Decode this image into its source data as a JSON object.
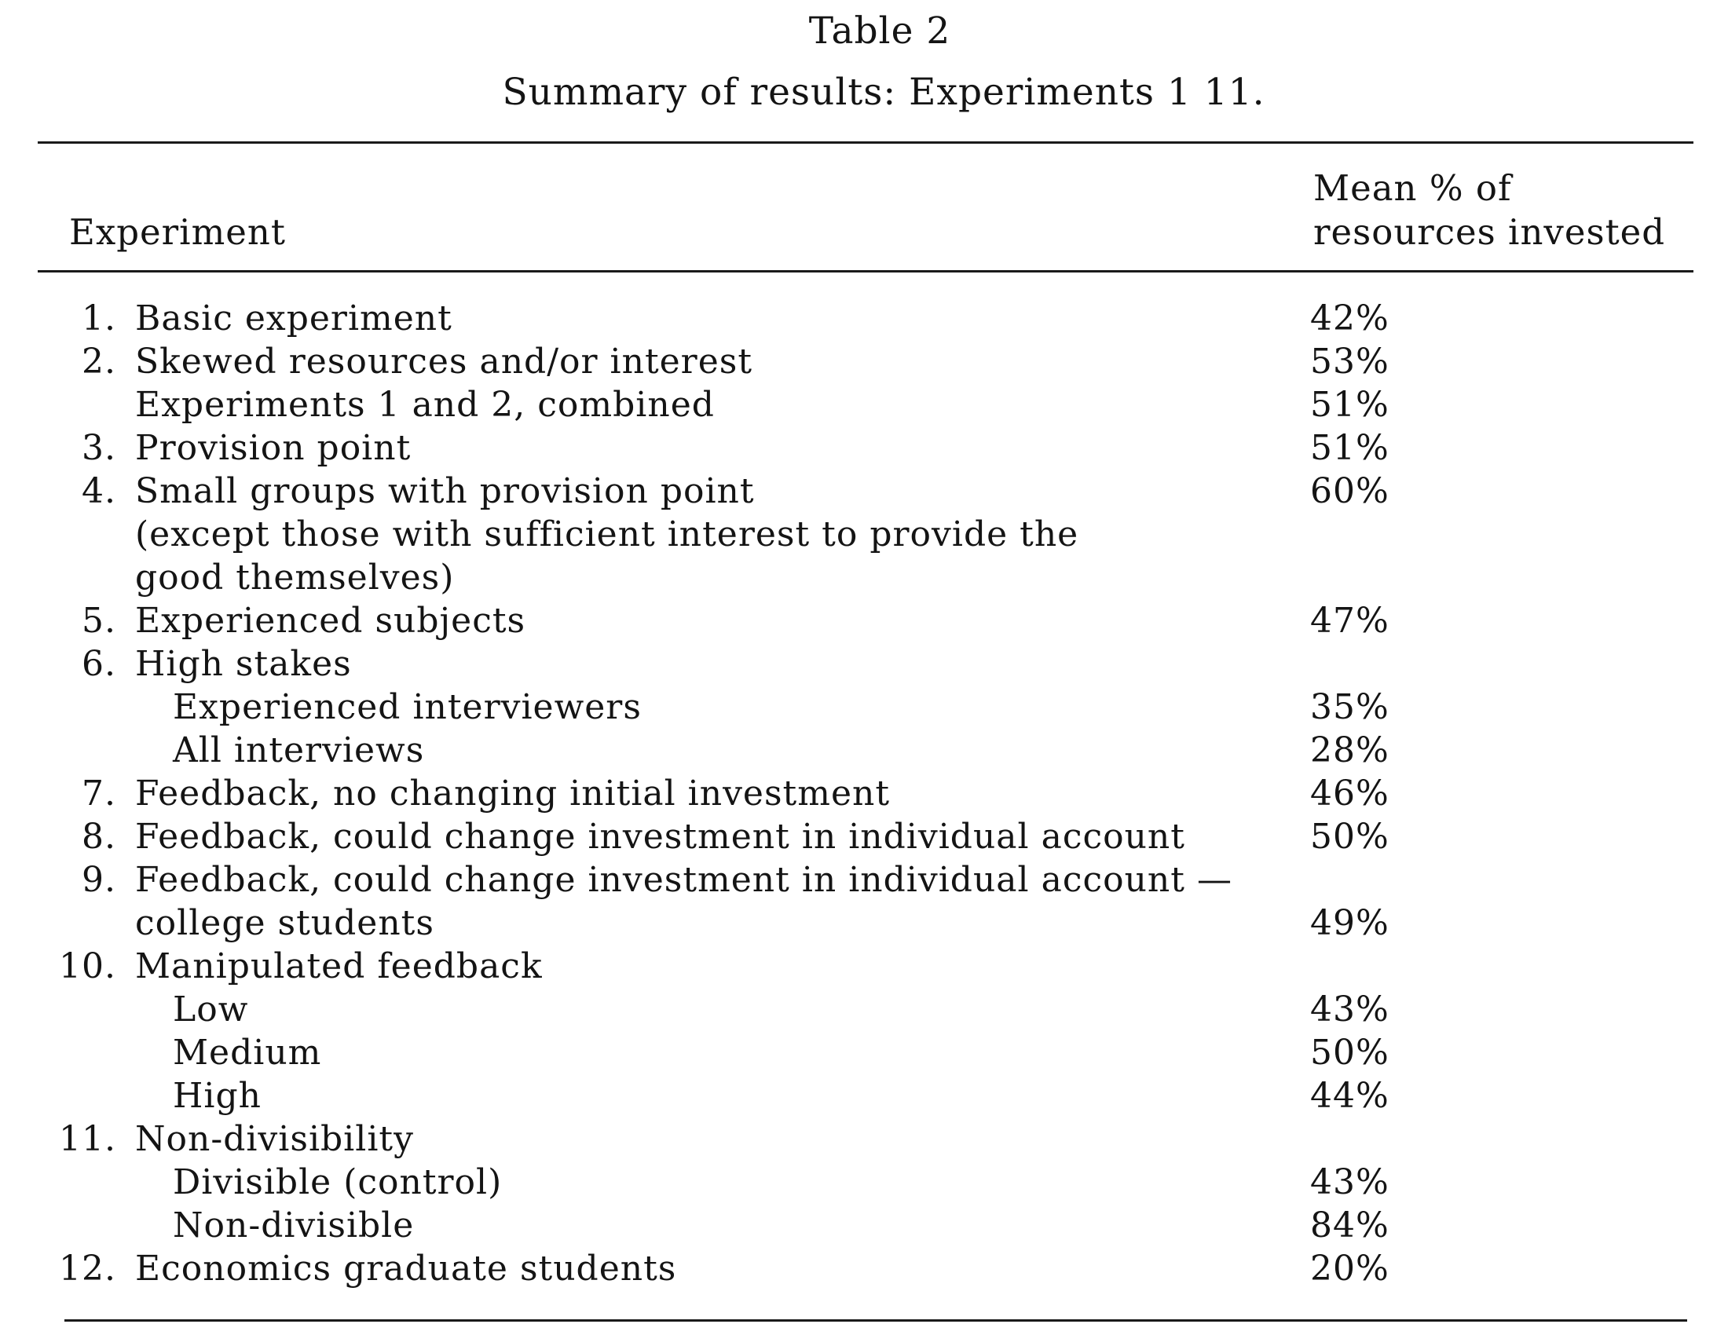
{
  "title": "Table 2",
  "caption": "Summary of results: Experiments 1 11.",
  "header": {
    "experiment": "Experiment",
    "mean_line1": "Mean % of",
    "mean_line2": "resources invested"
  },
  "rows": [
    {
      "num": "1.",
      "label": "Basic experiment",
      "value": "42%"
    },
    {
      "num": "2.",
      "label": "Skewed resources and/or interest",
      "value": "53%"
    },
    {
      "num": "",
      "label": "Experiments 1 and 2, combined",
      "value": "51%"
    },
    {
      "num": "3.",
      "label": "Provision point",
      "value": "51%"
    },
    {
      "num": "4.",
      "label": "Small groups with provision point",
      "value": "60%"
    },
    {
      "num": "",
      "label": "(except those with sufficient interest to provide the",
      "value": ""
    },
    {
      "num": "",
      "label": "good themselves)",
      "value": ""
    },
    {
      "num": "5.",
      "label": "Experienced subjects",
      "value": "47%"
    },
    {
      "num": "6.",
      "label": "High stakes",
      "value": ""
    },
    {
      "num": "",
      "label": "Experienced interviewers",
      "value": "35%",
      "sub": true
    },
    {
      "num": "",
      "label": "All interviews",
      "value": "28%",
      "sub": true
    },
    {
      "num": "7.",
      "label": "Feedback, no changing initial investment",
      "value": "46%"
    },
    {
      "num": "8.",
      "label": "Feedback, could change investment in individual account",
      "value": "50%"
    },
    {
      "num": "9.",
      "label": "Feedback, could change investment in individual account —",
      "value": ""
    },
    {
      "num": "",
      "label": "college students",
      "value": "49%"
    },
    {
      "num": "10.",
      "label": "Manipulated feedback",
      "value": ""
    },
    {
      "num": "",
      "label": "Low",
      "value": "43%",
      "sub": true
    },
    {
      "num": "",
      "label": "Medium",
      "value": "50%",
      "sub": true
    },
    {
      "num": "",
      "label": "High",
      "value": "44%",
      "sub": true
    },
    {
      "num": "11.",
      "label": "Non-divisibility",
      "value": ""
    },
    {
      "num": "",
      "label": "Divisible (control)",
      "value": "43%",
      "sub": true
    },
    {
      "num": "",
      "label": "Non-divisible",
      "value": "84%",
      "sub": true
    },
    {
      "num": "12.",
      "label": "Economics graduate students",
      "value": "20%"
    }
  ]
}
